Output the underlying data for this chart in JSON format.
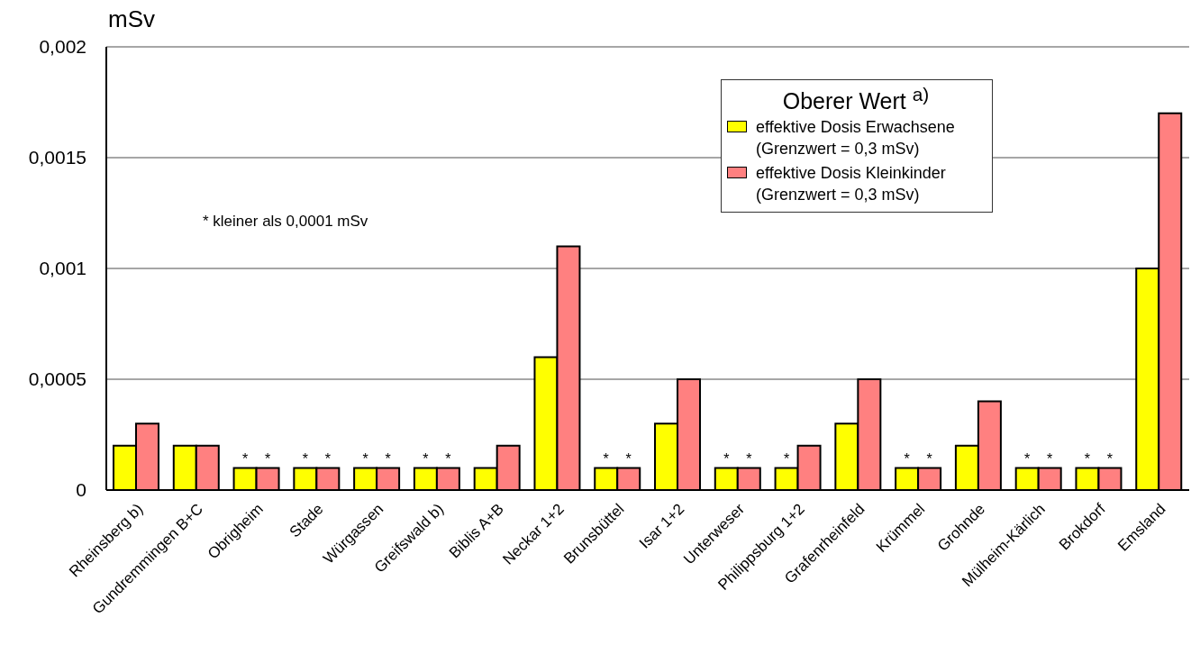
{
  "chart_data": {
    "type": "bar",
    "ylabel": "mSv",
    "legend_title": "Oberer Wert $^{a)}$",
    "legend": "top right",
    "grid": "y",
    "categories": [
      "Rheinsberg b)",
      "Gundremmingen B+C",
      "Obrigheim",
      "Stade",
      "Würgassen",
      "Greifswald b)",
      "Biblis A+B",
      "Neckar 1+2",
      "Brunsbüttel",
      "Isar 1+2",
      "Unterweser",
      "Philippsburg 1+2",
      "Grafenrheinfeld",
      "Krümmel",
      "Grohnde",
      "Mülheim-Kärlich",
      "Brokdorf",
      "Emsland"
    ],
    "series": [
      {
        "name": "effektive Dosis Erwachsene\n(Grenzwert = 0,3 mSv)",
        "color": "#ffff00",
        "values": [
          0.0002,
          0.0002,
          0.0001,
          0.0001,
          0.0001,
          0.0001,
          0.0001,
          0.0006,
          0.0001,
          0.0003,
          0.0001,
          0.0001,
          0.0003,
          0.0001,
          0.0002,
          0.0001,
          0.0001,
          0.001
        ],
        "value_labels": [
          null,
          null,
          "*",
          "*",
          "*",
          "*",
          null,
          null,
          "*",
          null,
          "*",
          "*",
          null,
          "*",
          null,
          "*",
          "*",
          null
        ]
      },
      {
        "name": "effektive Dosis Kleinkinder\n(Grenzwert = 0,3 mSv)",
        "color": "#ff8080",
        "values": [
          0.0003,
          0.0002,
          0.0001,
          0.0001,
          0.0001,
          0.0001,
          0.0002,
          0.0011,
          0.0001,
          0.0005,
          0.0001,
          0.0002,
          0.0005,
          0.0001,
          0.0004,
          0.0001,
          0.0001,
          0.0017
        ],
        "value_labels": [
          null,
          null,
          "*",
          "*",
          "*",
          "*",
          null,
          null,
          "*",
          null,
          "*",
          null,
          null,
          "*",
          null,
          "*",
          "*",
          null
        ]
      }
    ],
    "ylim": [
      0,
      0.002
    ],
    "yticks": [
      0,
      {
        "value": 0.0005,
        "label": "0,0005"
      },
      {
        "value": 0.001,
        "label": "0,001"
      },
      {
        "value": 0.0015,
        "label": "0,0015"
      },
      {
        "value": 0.002,
        "label": "0,002"
      }
    ],
    "annotations": [
      "* kleiner als 0,0001 mSv"
    ]
  }
}
